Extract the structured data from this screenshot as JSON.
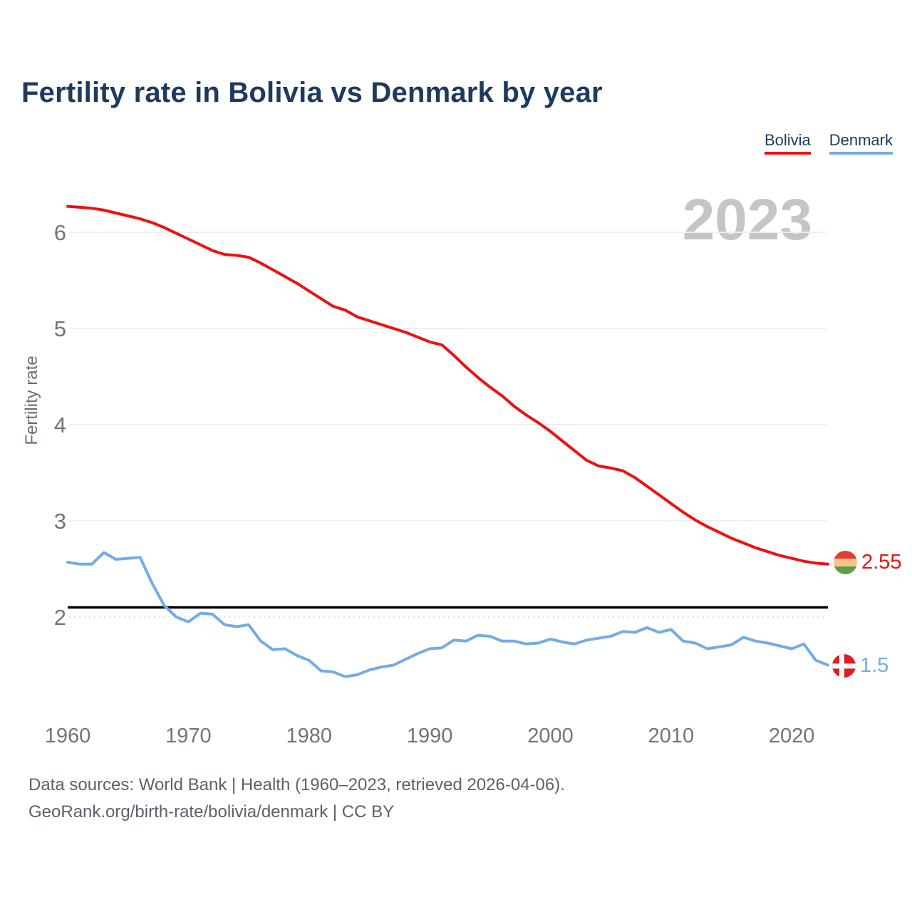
{
  "title": "Fertility rate in Bolivia vs Denmark by year",
  "legend": [
    {
      "label": "Bolivia",
      "color": "#ee1111"
    },
    {
      "label": "Denmark",
      "color": "#74ace4"
    }
  ],
  "watermark": "2023",
  "y_axis": {
    "label": "Fertility rate",
    "ticks": [
      2,
      3,
      4,
      5,
      6
    ]
  },
  "x_axis": {
    "ticks": [
      1960,
      1970,
      1980,
      1990,
      2000,
      2010,
      2020
    ]
  },
  "end_labels": {
    "bolivia": {
      "value": "2.55",
      "icon": "bolivia-flag",
      "flag_colors": [
        "#e23b32",
        "#f9c48b",
        "#5f9e49"
      ],
      "text_color": "#ee1111"
    },
    "denmark": {
      "value": "1.5",
      "icon": "denmark-flag",
      "flag_colors": [
        "#e01b22"
      ],
      "text_color": "#74ace4"
    }
  },
  "footer": {
    "line1": "Data sources: World Bank | Health (1960–2023, retrieved 2026-04-06).",
    "line2": "GeoRank.org/birth-rate/bolivia/denmark | CC BY"
  },
  "chart_data": {
    "type": "line",
    "title": "Fertility rate in Bolivia vs Denmark by year",
    "ylabel": "Fertility rate",
    "xlabel": "",
    "ylim": [
      1.3,
      6.45
    ],
    "xlim": [
      1960,
      2023
    ],
    "grid": "horizontal",
    "legend_position": "top-right",
    "reference_line": 2.1,
    "x": [
      1960,
      1961,
      1962,
      1963,
      1964,
      1965,
      1966,
      1967,
      1968,
      1969,
      1970,
      1971,
      1972,
      1973,
      1974,
      1975,
      1976,
      1977,
      1978,
      1979,
      1980,
      1981,
      1982,
      1983,
      1984,
      1985,
      1986,
      1987,
      1988,
      1989,
      1990,
      1991,
      1992,
      1993,
      1994,
      1995,
      1996,
      1997,
      1998,
      1999,
      2000,
      2001,
      2002,
      2003,
      2004,
      2005,
      2006,
      2007,
      2008,
      2009,
      2010,
      2011,
      2012,
      2013,
      2014,
      2015,
      2016,
      2017,
      2018,
      2019,
      2020,
      2021,
      2022,
      2023
    ],
    "series": [
      {
        "name": "Bolivia",
        "color": "#ee1111",
        "end_value": 2.55,
        "values": [
          6.27,
          6.26,
          6.25,
          6.23,
          6.2,
          6.17,
          6.14,
          6.1,
          6.05,
          5.99,
          5.93,
          5.87,
          5.81,
          5.77,
          5.76,
          5.74,
          5.68,
          5.61,
          5.54,
          5.47,
          5.39,
          5.31,
          5.23,
          5.19,
          5.12,
          5.08,
          5.04,
          5.0,
          4.96,
          4.91,
          4.86,
          4.83,
          4.72,
          4.6,
          4.49,
          4.39,
          4.3,
          4.19,
          4.1,
          4.02,
          3.93,
          3.83,
          3.73,
          3.63,
          3.57,
          3.55,
          3.52,
          3.45,
          3.36,
          3.27,
          3.18,
          3.09,
          3.01,
          2.94,
          2.88,
          2.82,
          2.77,
          2.72,
          2.68,
          2.64,
          2.61,
          2.58,
          2.56,
          2.55
        ]
      },
      {
        "name": "Denmark",
        "color": "#74ace4",
        "end_value": 1.5,
        "values": [
          2.57,
          2.55,
          2.55,
          2.67,
          2.6,
          2.61,
          2.62,
          2.35,
          2.12,
          2.0,
          1.95,
          2.04,
          2.03,
          1.92,
          1.9,
          1.92,
          1.75,
          1.66,
          1.67,
          1.6,
          1.55,
          1.44,
          1.43,
          1.38,
          1.4,
          1.45,
          1.48,
          1.5,
          1.56,
          1.62,
          1.67,
          1.68,
          1.76,
          1.75,
          1.81,
          1.8,
          1.75,
          1.75,
          1.72,
          1.73,
          1.77,
          1.74,
          1.72,
          1.76,
          1.78,
          1.8,
          1.85,
          1.84,
          1.89,
          1.84,
          1.87,
          1.75,
          1.73,
          1.67,
          1.69,
          1.71,
          1.79,
          1.75,
          1.73,
          1.7,
          1.67,
          1.72,
          1.55,
          1.5
        ]
      }
    ]
  }
}
